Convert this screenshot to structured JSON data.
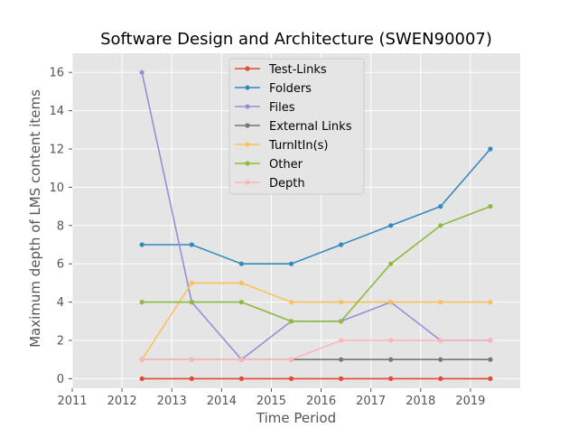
{
  "chart_data": {
    "type": "line",
    "title": "Software Design and Architecture (SWEN90007)",
    "xlabel": "Time Period",
    "ylabel": "Maximum depth of LMS content items",
    "xlim": [
      2011,
      2020
    ],
    "ylim": [
      -0.5,
      17
    ],
    "x_ticks": [
      2011,
      2012,
      2013,
      2014,
      2015,
      2016,
      2017,
      2018,
      2019
    ],
    "y_ticks": [
      0,
      2,
      4,
      6,
      8,
      10,
      12,
      14,
      16
    ],
    "grid": true,
    "legend_position": "top-center",
    "x": [
      2012.4,
      2013.4,
      2014.4,
      2015.4,
      2016.4,
      2017.4,
      2018.4,
      2019.4
    ],
    "series": [
      {
        "name": "Test-Links",
        "color": "#e24a33",
        "values": [
          0,
          0,
          0,
          0,
          0,
          0,
          0,
          0
        ]
      },
      {
        "name": "Folders",
        "color": "#348abd",
        "values": [
          7,
          7,
          6,
          6,
          7,
          8,
          9,
          12
        ]
      },
      {
        "name": "Files",
        "color": "#988ed5",
        "values": [
          16,
          4,
          1,
          3,
          3,
          4,
          2,
          2
        ]
      },
      {
        "name": "External Links",
        "color": "#777777",
        "values": [
          1,
          1,
          1,
          1,
          1,
          1,
          1,
          1
        ]
      },
      {
        "name": "TurnItIn(s)",
        "color": "#fbc15e",
        "values": [
          1,
          5,
          5,
          4,
          4,
          4,
          4,
          4
        ]
      },
      {
        "name": "Other",
        "color": "#8eba42",
        "values": [
          4,
          4,
          4,
          3,
          3,
          6,
          8,
          9
        ]
      },
      {
        "name": "Depth",
        "color": "#ffb5b8",
        "values": [
          1,
          1,
          1,
          1,
          2,
          2,
          2,
          2
        ]
      }
    ]
  }
}
